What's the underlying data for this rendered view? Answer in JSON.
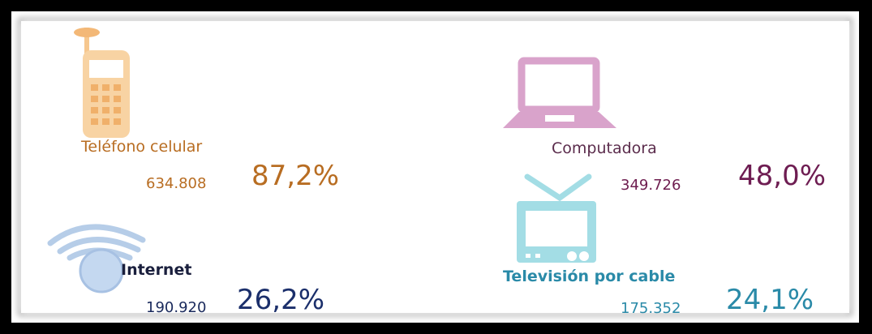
{
  "items": [
    {
      "label": "Teléfono celular",
      "count": "634.808",
      "percent": "87,2%"
    },
    {
      "label": "Computadora",
      "count": "349.726",
      "percent": "48,0%"
    },
    {
      "label": "Internet",
      "count": "190.920",
      "percent": "26,2%"
    },
    {
      "label": "Televisión por cable",
      "count": "175.352",
      "percent": "24,1%"
    }
  ]
}
